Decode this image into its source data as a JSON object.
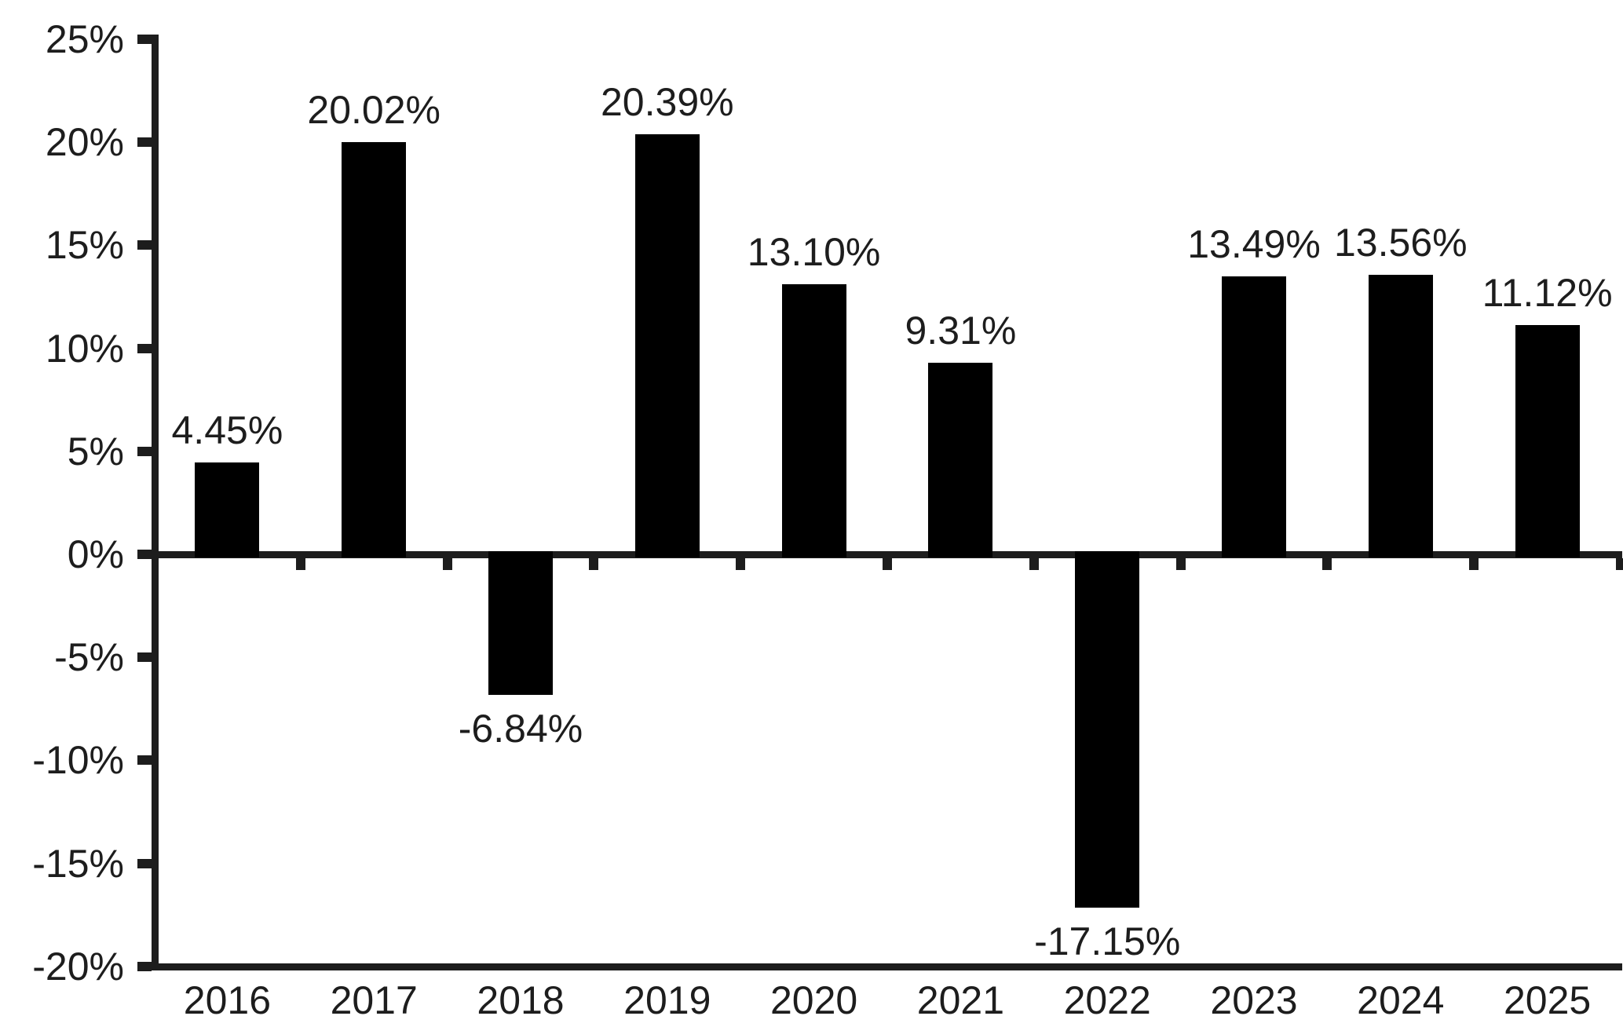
{
  "chart_data": {
    "type": "bar",
    "title": "",
    "xlabel": "",
    "ylabel": "",
    "categories": [
      "2016",
      "2017",
      "2018",
      "2019",
      "2020",
      "2021",
      "2022",
      "2023",
      "2024",
      "2025"
    ],
    "values": [
      4.45,
      20.02,
      -6.84,
      20.39,
      13.1,
      9.31,
      -17.15,
      13.49,
      13.56,
      11.12
    ],
    "value_labels": [
      "4.45%",
      "20.02%",
      "-6.84%",
      "20.39%",
      "13.10%",
      "9.31%",
      "-17.15%",
      "13.49%",
      "13.56%",
      "11.12%"
    ],
    "y_ticks": [
      25,
      20,
      15,
      10,
      5,
      0,
      -5,
      -10,
      -15,
      -20
    ],
    "y_tick_labels": [
      "25%",
      "20%",
      "15%",
      "10%",
      "5%",
      "0%",
      "-5%",
      "-10%",
      "-15%",
      "-20%"
    ],
    "ylim": [
      -20,
      25
    ],
    "grid": false,
    "legend": false,
    "bar_color": "#000000",
    "axis_color": "#1d1d1d",
    "text_color": "#1d1d1d",
    "background_color": "#ffffff"
  }
}
